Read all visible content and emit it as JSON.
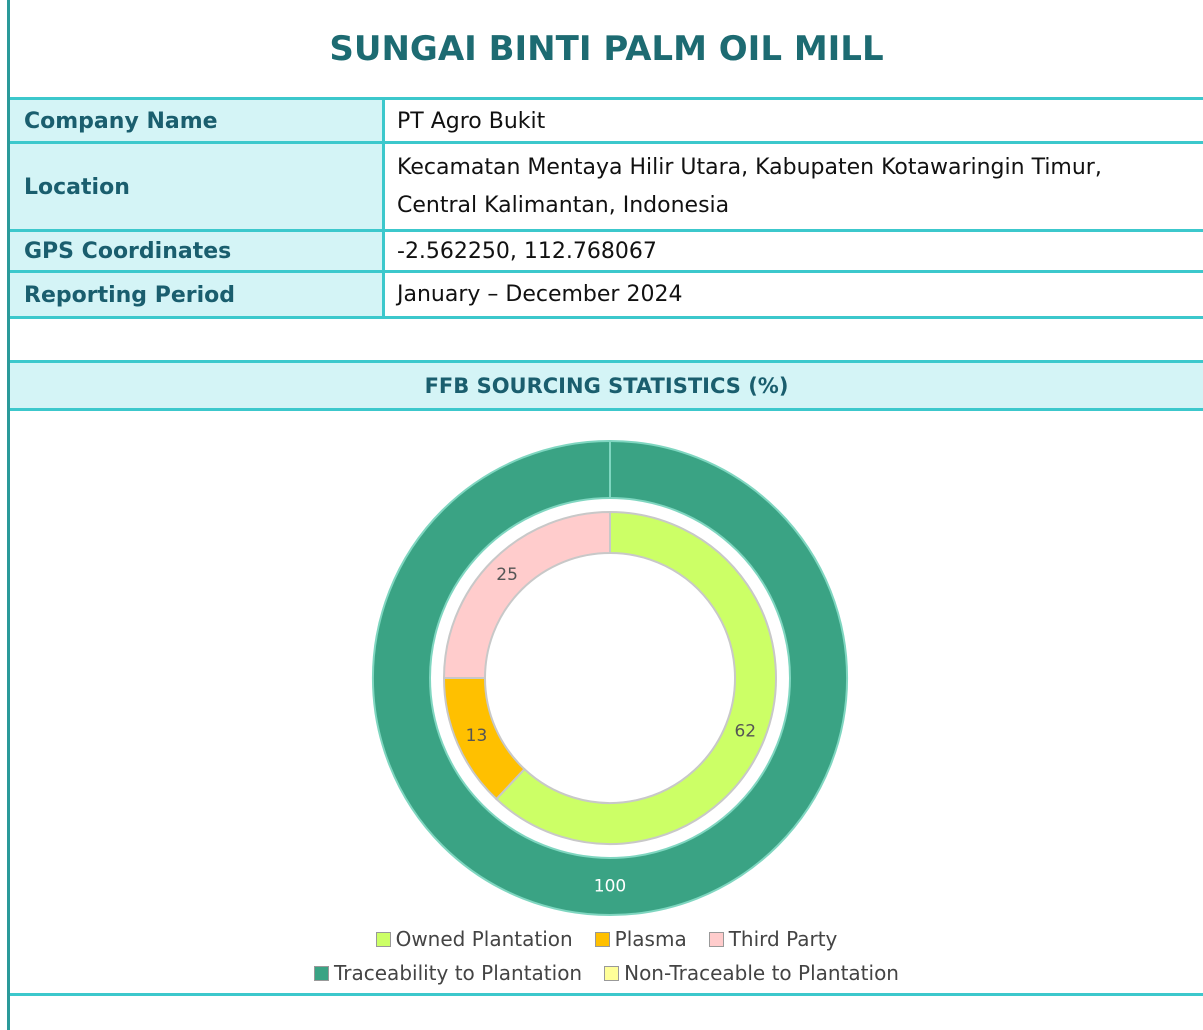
{
  "header": {
    "title": "SUNGAI BINTI PALM OIL MILL"
  },
  "table": {
    "rows": [
      [
        "Company Name",
        "PT Agro Bukit"
      ],
      [
        "Location",
        "Kecamatan Mentaya Hilir Utara, Kabupaten Kotawaringin Timur, Central Kalimantan, Indonesia"
      ],
      [
        "GPS Coordinates",
        "-2.562250, 112.768067"
      ],
      [
        "Reporting Period",
        "January – December 2024"
      ]
    ]
  },
  "chart_data": {
    "type": "donut",
    "title": "FFB SOURCING STATISTICS (%)",
    "series": [
      {
        "categories": [
          "Owned Plantation",
          "Plasma",
          "Third Party"
        ],
        "values": [
          62,
          13,
          25
        ],
        "colors": [
          "#ccff66",
          "#ffc000",
          "#ffcccc"
        ]
      },
      {
        "categories": [
          "Traceability to Plantation",
          "Non-Traceable to Plantation"
        ],
        "values": [
          100,
          0
        ],
        "colors": [
          "#3aa384",
          "#ffff99"
        ]
      }
    ]
  }
}
